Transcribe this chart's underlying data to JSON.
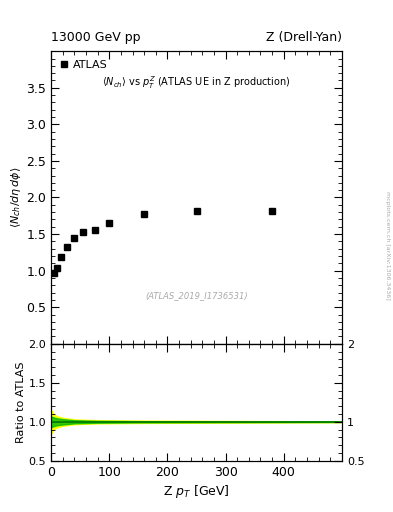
{
  "title_left": "13000 GeV pp",
  "title_right": "Z (Drell-Yan)",
  "inner_title": "$\\langle N_{ch}\\rangle$ vs $p_T^Z$ (ATLAS UE in Z production)",
  "watermark": "(ATLAS_2019_I1736531)",
  "arxiv_text": "mcplots.cern.ch [arXiv:1306.3436]",
  "legend_label": "ATLAS",
  "ylabel_main": "$\\langle N_{ch}/d\\eta\\, d\\phi\\rangle$",
  "ylabel_ratio": "Ratio to ATLAS",
  "xlabel": "Z $p_T$ [GeV]",
  "xlim": [
    0,
    500
  ],
  "ylim_main": [
    0.0,
    4.0
  ],
  "ylim_ratio": [
    0.5,
    2.0
  ],
  "data_x": [
    5,
    10,
    17,
    27,
    40,
    55,
    75,
    100,
    160,
    250,
    380
  ],
  "data_y": [
    0.97,
    1.04,
    1.19,
    1.32,
    1.44,
    1.53,
    1.55,
    1.65,
    1.78,
    1.82,
    1.82
  ],
  "band_yellow_x": [
    0,
    1,
    3,
    5,
    10,
    20,
    40,
    80,
    150,
    250,
    400,
    500
  ],
  "band_yellow_upper": [
    1.15,
    1.13,
    1.11,
    1.09,
    1.07,
    1.05,
    1.03,
    1.02,
    1.015,
    1.012,
    1.008,
    1.005
  ],
  "band_yellow_lower": [
    0.85,
    0.87,
    0.89,
    0.91,
    0.93,
    0.95,
    0.97,
    0.98,
    0.985,
    0.988,
    0.992,
    0.995
  ],
  "band_green_upper": [
    1.07,
    1.065,
    1.06,
    1.055,
    1.045,
    1.035,
    1.02,
    1.012,
    1.008,
    1.006,
    1.004,
    1.003
  ],
  "band_green_lower": [
    0.93,
    0.935,
    0.94,
    0.945,
    0.955,
    0.965,
    0.98,
    0.988,
    0.992,
    0.994,
    0.996,
    0.997
  ],
  "marker_color": "#000000",
  "marker_style": "s",
  "marker_size": 5,
  "yellow_color": "#ffff00",
  "green_color": "#00bb00",
  "ratio_line_color": "#007700",
  "bg_color": "#ffffff",
  "xticks": [
    0,
    100,
    200,
    300,
    400
  ],
  "xticklabels": [
    "0",
    "100",
    "200",
    "300",
    "400"
  ],
  "yticks_main": [
    0.5,
    1.0,
    1.5,
    2.0,
    2.5,
    3.0,
    3.5
  ],
  "yticks_ratio": [
    0.5,
    1.0,
    1.5,
    2.0
  ],
  "ytick_ratio_right_labels": [
    "0.5",
    "1",
    "",
    "2"
  ]
}
